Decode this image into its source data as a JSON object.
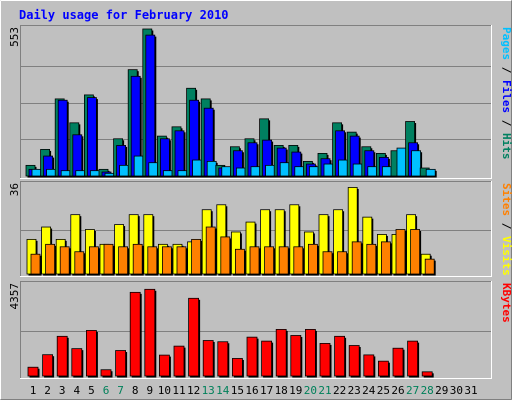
{
  "chart_data": {
    "type": "bar",
    "title": "Daily usage for February 2010",
    "categories": [
      "1",
      "2",
      "3",
      "4",
      "5",
      "6",
      "7",
      "8",
      "9",
      "10",
      "11",
      "12",
      "13",
      "14",
      "15",
      "16",
      "17",
      "18",
      "19",
      "20",
      "21",
      "22",
      "23",
      "24",
      "25",
      "26",
      "27",
      "28",
      "29",
      "30",
      "31"
    ],
    "weekend_days": [
      "6",
      "7",
      "13",
      "14",
      "20",
      "21",
      "27",
      "28"
    ],
    "panels": [
      {
        "id": "top",
        "ymax_label": "553",
        "ymax": 553,
        "side_label_parts": [
          {
            "text": "Pages",
            "color": "#00C0FF"
          },
          {
            "text": " / ",
            "color": "#000000"
          },
          {
            "text": "Files",
            "color": "#0000FF"
          },
          {
            "text": " / ",
            "color": "#000000"
          },
          {
            "text": "Hits",
            "color": "#008060"
          }
        ],
        "series": [
          {
            "name": "Hits",
            "color": "#008060",
            "values": [
              40,
              100,
              290,
              200,
              305,
              25,
              140,
              400,
              553,
              150,
              185,
              330,
              290,
              40,
              110,
              140,
              215,
              115,
              115,
              55,
              85,
              200,
              165,
              110,
              85,
              95,
              205,
              30,
              0,
              0,
              0
            ]
          },
          {
            "name": "Files",
            "color": "#0000FF",
            "values": [
              25,
              75,
              285,
              155,
              295,
              15,
              115,
              375,
              530,
              140,
              170,
              285,
              255,
              30,
              95,
              125,
              135,
              105,
              90,
              45,
              65,
              170,
              150,
              95,
              70,
              0,
              125,
              0,
              0,
              0,
              0
            ]
          },
          {
            "name": "Pages",
            "color": "#00C0FF",
            "values": [
              25,
              25,
              20,
              20,
              20,
              10,
              40,
              75,
              50,
              20,
              20,
              60,
              55,
              35,
              30,
              35,
              40,
              50,
              35,
              35,
              45,
              60,
              45,
              35,
              35,
              105,
              95,
              25,
              0,
              0,
              0
            ]
          }
        ]
      },
      {
        "id": "middle",
        "ymax_label": "36",
        "ymax": 36,
        "side_label_parts": [
          {
            "text": "Sites",
            "color": "#FF8000"
          },
          {
            "text": " / ",
            "color": "#000000"
          },
          {
            "text": "Visits",
            "color": "#FFFF00"
          }
        ],
        "series": [
          {
            "name": "Visits",
            "color": "#FFFF00",
            "values": [
              14,
              19,
              14,
              24,
              18,
              12,
              20,
              24,
              24,
              12,
              12,
              13,
              26,
              28,
              17,
              21,
              26,
              26,
              28,
              17,
              24,
              26,
              35,
              23,
              16,
              16,
              24,
              8,
              0,
              0,
              0
            ]
          },
          {
            "name": "Sites",
            "color": "#FF8000",
            "values": [
              8,
              12,
              11,
              9,
              11,
              12,
              11,
              12,
              11,
              11,
              11,
              14,
              19,
              15,
              10,
              11,
              11,
              11,
              11,
              12,
              9,
              9,
              13,
              12,
              13,
              18,
              18,
              6,
              0,
              0,
              0
            ]
          }
        ]
      },
      {
        "id": "bottom",
        "ymax_label": "4357",
        "ymax": 4357,
        "side_label_parts": [
          {
            "text": "KBytes",
            "color": "#FF0000"
          }
        ],
        "series": [
          {
            "name": "KBytes",
            "color": "#FF0000",
            "values": [
              420,
              1020,
              1900,
              1310,
              2180,
              300,
              1220,
              4005,
              4150,
              1000,
              1430,
              3720,
              1700,
              1640,
              840,
              1860,
              1670,
              2230,
              1940,
              2230,
              1560,
              1900,
              1460,
              1010,
              710,
              1330,
              1670,
              200,
              0,
              0,
              0
            ]
          }
        ]
      }
    ]
  }
}
